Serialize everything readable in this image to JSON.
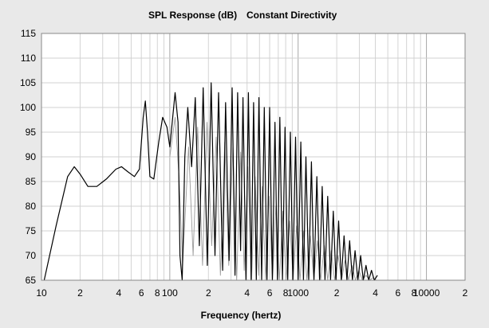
{
  "chart_data": {
    "type": "line",
    "title_main": "SPL Response (dB)",
    "title_sub": "Constant Directivity",
    "xlabel": "Frequency (hertz)",
    "ylabel": "",
    "x_scale": "log",
    "xlim": [
      10,
      20000
    ],
    "ylim": [
      65,
      115
    ],
    "grid": true,
    "yticks": [
      "115",
      "110",
      "105",
      "100",
      "95",
      "90",
      "85",
      "80",
      "75",
      "70",
      "65"
    ],
    "xticks": [
      {
        "v": 10,
        "t": "10"
      },
      {
        "v": 20,
        "t": "2"
      },
      {
        "v": 40,
        "t": "4"
      },
      {
        "v": 60,
        "t": "6"
      },
      {
        "v": 80,
        "t": "8"
      },
      {
        "v": 100,
        "t": "100"
      },
      {
        "v": 200,
        "t": "2"
      },
      {
        "v": 400,
        "t": "4"
      },
      {
        "v": 600,
        "t": "6"
      },
      {
        "v": 800,
        "t": "8"
      },
      {
        "v": 1000,
        "t": "1000"
      },
      {
        "v": 2000,
        "t": "2"
      },
      {
        "v": 4000,
        "t": "4"
      },
      {
        "v": 6000,
        "t": "6"
      },
      {
        "v": 8000,
        "t": "8"
      },
      {
        "v": 10000,
        "t": "10000"
      },
      {
        "v": 20000,
        "t": "2"
      }
    ],
    "series": [
      {
        "color": "#000000",
        "x": [
          10.5,
          13,
          16,
          18,
          20,
          23,
          27,
          32,
          38,
          42,
          47,
          53,
          58,
          62,
          64.5,
          67,
          70,
          75,
          82,
          88,
          95,
          100,
          110,
          116,
          120,
          125,
          131,
          138,
          148,
          158,
          170,
          182,
          196,
          210,
          225,
          240,
          258,
          272,
          290,
          306,
          322,
          338,
          356,
          372,
          392,
          410,
          430,
          450,
          472,
          495,
          520,
          545,
          572,
          600,
          630,
          660,
          690,
          720,
          755,
          790,
          830,
          870,
          910,
          955,
          1000,
          1050,
          1100,
          1150,
          1210,
          1270,
          1330,
          1400,
          1470,
          1540,
          1620,
          1700,
          1790,
          1880,
          1970,
          2070,
          2170,
          2280,
          2400,
          2520,
          2650,
          2780,
          2920,
          3070,
          3220,
          3380,
          3550,
          3730,
          3920,
          4150
        ],
        "y": [
          65,
          76,
          86,
          88,
          86.5,
          84,
          84,
          85.5,
          87.5,
          88,
          87,
          86,
          87.5,
          98,
          101.3,
          95,
          86,
          85.5,
          93,
          98,
          96,
          92,
          103,
          97,
          70,
          65,
          90,
          100,
          88,
          102,
          72,
          104,
          68,
          105,
          70,
          103,
          67,
          101,
          69,
          104,
          66,
          103,
          71,
          102,
          65,
          103,
          65,
          101,
          65,
          102,
          65,
          100,
          65,
          100,
          65,
          97,
          65,
          98,
          65,
          96,
          65,
          95,
          65,
          94,
          65,
          93,
          65,
          90,
          65,
          89,
          65,
          86,
          65,
          84,
          65,
          82,
          65,
          79,
          65,
          77,
          65,
          74,
          65,
          73,
          65,
          71,
          65,
          70,
          65,
          68,
          65,
          67,
          65,
          66
        ]
      },
      {
        "color": "#9a9a9a",
        "x": [
          100,
          110,
          118,
          126,
          140,
          152,
          165,
          180,
          195,
          212,
          230,
          248,
          268,
          288,
          310,
          332,
          356,
          380,
          406,
          434,
          462,
          492,
          525,
          558,
          594,
          632,
          672,
          715,
          760,
          808,
          860,
          915,
          973,
          1035,
          1100,
          1170,
          1245,
          1325,
          1410,
          1500,
          1600,
          1700,
          1810,
          1925,
          2050,
          2180,
          2320,
          2470,
          2630,
          2800,
          2980,
          3170,
          3380,
          3600,
          3830,
          4080
        ],
        "y": [
          90,
          98,
          86,
          68,
          92,
          70,
          96,
          68,
          97,
          72,
          94,
          66,
          93,
          68,
          92,
          65,
          91,
          67,
          88,
          65,
          86,
          66,
          84,
          65,
          82,
          65,
          80,
          65,
          79,
          65,
          77,
          65,
          76,
          65,
          75,
          65,
          74,
          65,
          73,
          65,
          72,
          65,
          71,
          65,
          70,
          65,
          69,
          65,
          68,
          65,
          67,
          65,
          66,
          65,
          65.5,
          65
        ]
      }
    ]
  }
}
